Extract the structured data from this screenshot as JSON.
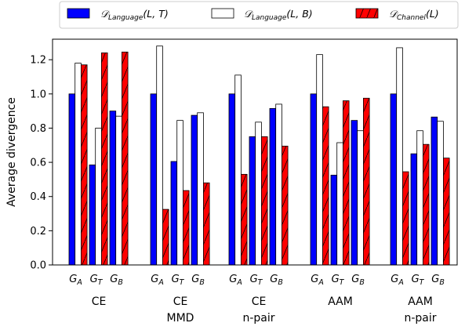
{
  "chart_data": {
    "type": "bar",
    "ylabel": "Average divergence",
    "ylim": [
      0,
      1.32
    ],
    "yticks": [
      "0.0",
      "0.2",
      "0.4",
      "0.6",
      "0.8",
      "1.0",
      "1.2"
    ],
    "grid": false,
    "legend_position": "top",
    "groups": [
      {
        "label": "CE",
        "label2": ""
      },
      {
        "label": "CE",
        "label2": "MMD"
      },
      {
        "label": "CE",
        "label2": "n-pair"
      },
      {
        "label": "AAM",
        "label2": ""
      },
      {
        "label": "AAM",
        "label2": "n-pair"
      }
    ],
    "sub_labels": [
      {
        "base": "G",
        "sub": "A"
      },
      {
        "base": "G",
        "sub": "T"
      },
      {
        "base": "G",
        "sub": "B"
      }
    ],
    "series": [
      {
        "legend_main": "𝒟",
        "legend_sub": "Language",
        "legend_args": "(L, T)",
        "color": "#0000ff",
        "hatch": false,
        "values": [
          [
            1.0,
            0.585,
            0.9
          ],
          [
            1.0,
            0.605,
            0.875
          ],
          [
            1.0,
            0.75,
            0.915
          ],
          [
            1.0,
            0.525,
            0.845
          ],
          [
            1.0,
            0.65,
            0.865
          ]
        ]
      },
      {
        "legend_main": "𝒟",
        "legend_sub": "Language",
        "legend_args": "(L, B)",
        "color": "#ffffff",
        "hatch": false,
        "values": [
          [
            1.18,
            0.8,
            0.87
          ],
          [
            1.28,
            0.845,
            0.89
          ],
          [
            1.11,
            0.835,
            0.94
          ],
          [
            1.23,
            0.715,
            0.785
          ],
          [
            1.27,
            0.785,
            0.84
          ]
        ]
      },
      {
        "legend_main": "𝒟",
        "legend_sub": "Channel",
        "legend_args": "(L)",
        "color": "#ff0000",
        "hatch": true,
        "values": [
          [
            1.17,
            1.24,
            1.245
          ],
          [
            0.325,
            0.435,
            0.48
          ],
          [
            0.53,
            0.75,
            0.695
          ],
          [
            0.925,
            0.96,
            0.975
          ],
          [
            0.545,
            0.705,
            0.625
          ]
        ]
      }
    ]
  }
}
